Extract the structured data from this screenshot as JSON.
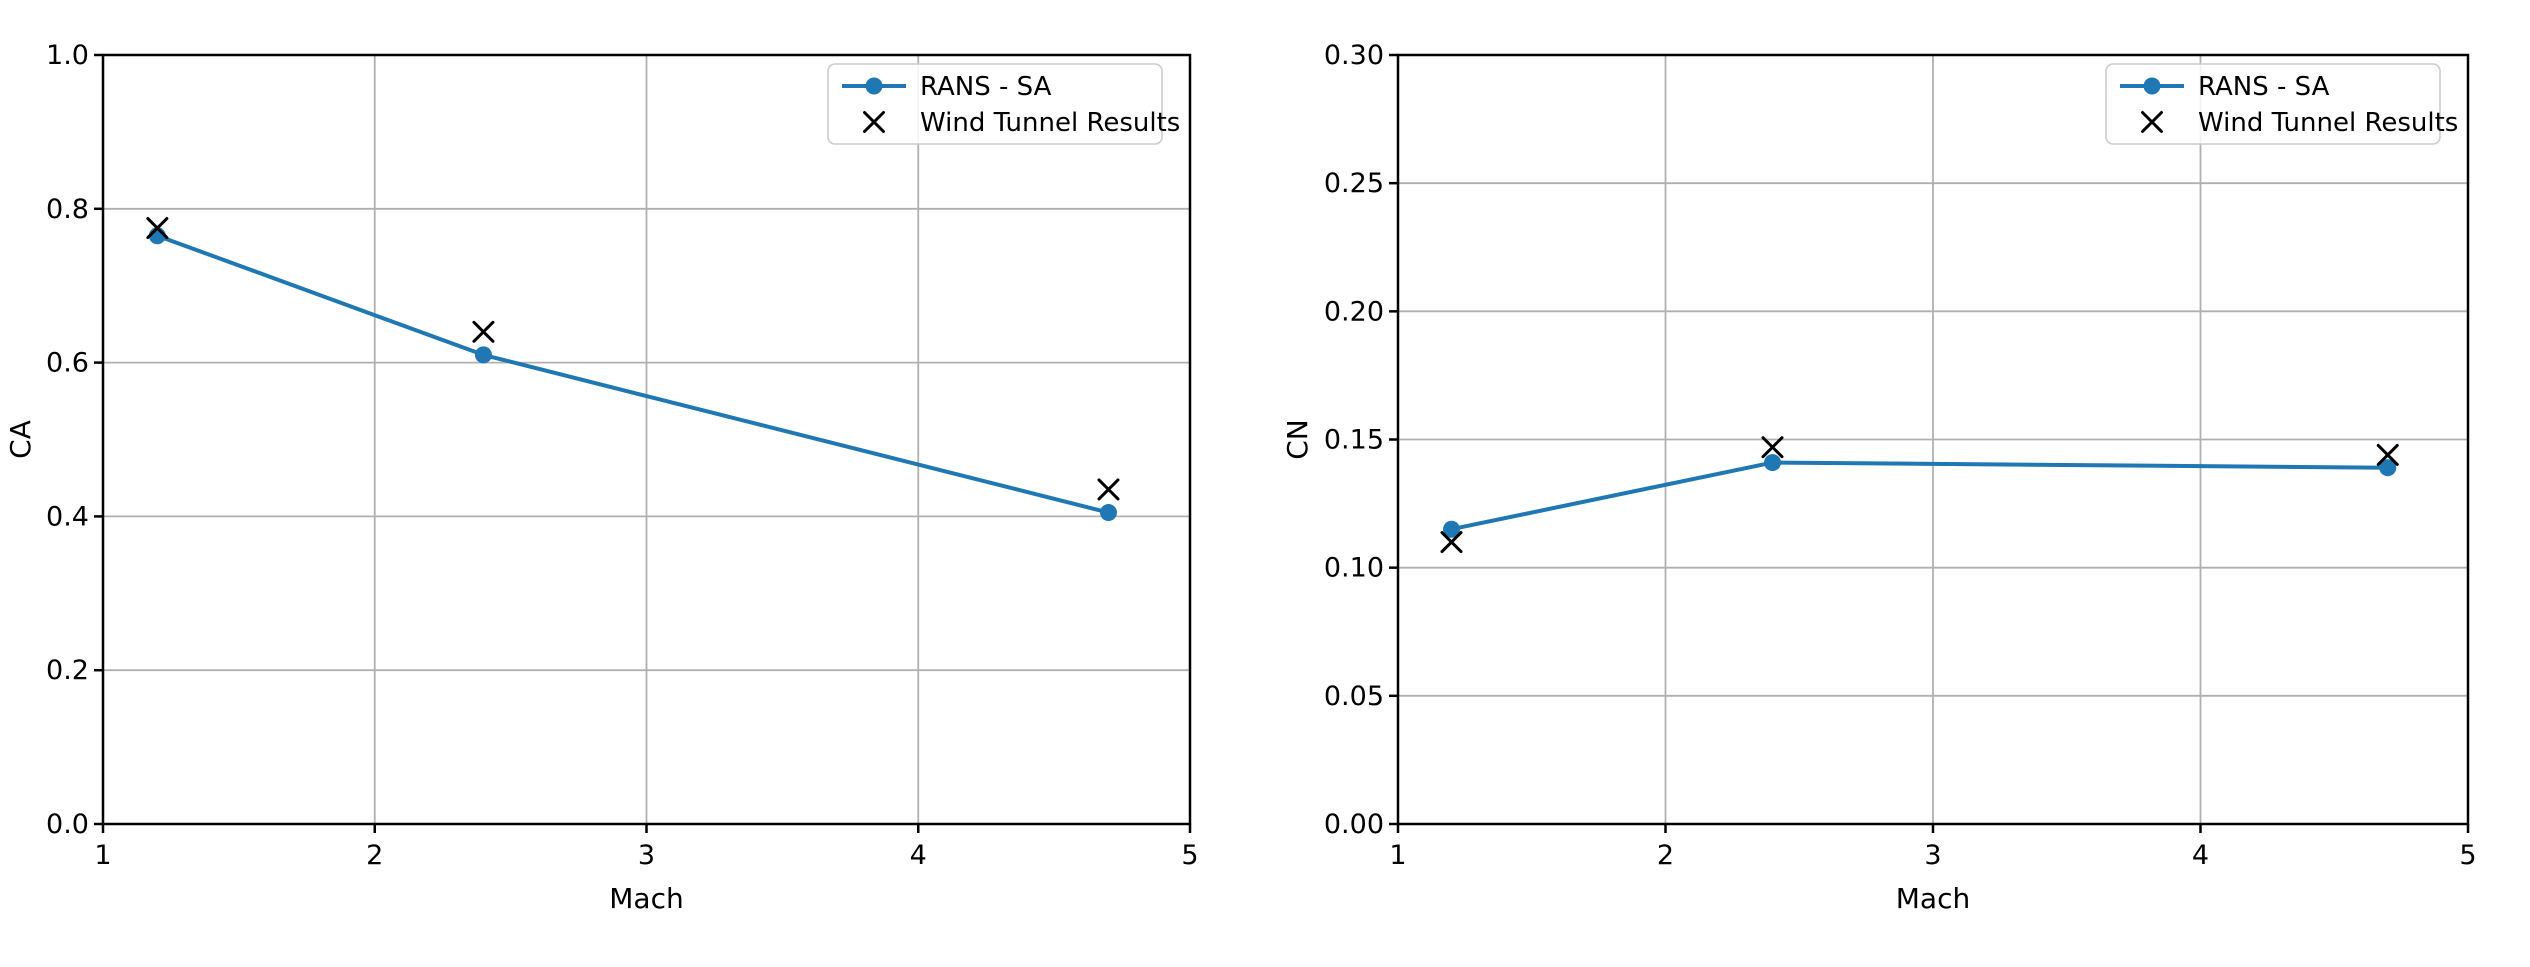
{
  "figure": {
    "background": "#ffffff",
    "text_color": "#000000",
    "grid_color": "#b0b0b0",
    "spine_color": "#000000",
    "legend_border_color": "#cccccc",
    "legend_bg_color": "#ffffff"
  },
  "chart_data": [
    {
      "type": "line",
      "title": "",
      "xlabel": "Mach",
      "ylabel": "CA",
      "xlim": [
        1,
        5
      ],
      "ylim": [
        0.0,
        1.0
      ],
      "xticks": [
        1,
        2,
        3,
        4,
        5
      ],
      "xtick_labels": [
        "1",
        "2",
        "3",
        "4",
        "5"
      ],
      "yticks": [
        0.0,
        0.2,
        0.4,
        0.6,
        0.8,
        1.0
      ],
      "ytick_labels": [
        "0.0",
        "0.2",
        "0.4",
        "0.6",
        "0.8",
        "1.0"
      ],
      "grid": true,
      "legend_position": "upper right",
      "series": [
        {
          "name": "RANS - SA",
          "marker": "circle",
          "line": true,
          "color": "#1f77b4",
          "x": [
            1.2,
            2.4,
            4.7
          ],
          "y": [
            0.765,
            0.61,
            0.405
          ]
        },
        {
          "name": "Wind Tunnel Results",
          "marker": "x",
          "line": false,
          "color": "#000000",
          "x": [
            1.2,
            2.4,
            4.7
          ],
          "y": [
            0.775,
            0.64,
            0.435
          ]
        }
      ]
    },
    {
      "type": "line",
      "title": "",
      "xlabel": "Mach",
      "ylabel": "CN",
      "xlim": [
        1,
        5
      ],
      "ylim": [
        0.0,
        0.3
      ],
      "xticks": [
        1,
        2,
        3,
        4,
        5
      ],
      "xtick_labels": [
        "1",
        "2",
        "3",
        "4",
        "5"
      ],
      "yticks": [
        0.0,
        0.05,
        0.1,
        0.15,
        0.2,
        0.25,
        0.3
      ],
      "ytick_labels": [
        "0.00",
        "0.05",
        "0.10",
        "0.15",
        "0.20",
        "0.25",
        "0.30"
      ],
      "grid": true,
      "legend_position": "upper right",
      "series": [
        {
          "name": "RANS - SA",
          "marker": "circle",
          "line": true,
          "color": "#1f77b4",
          "x": [
            1.2,
            2.4,
            4.7
          ],
          "y": [
            0.115,
            0.141,
            0.139
          ]
        },
        {
          "name": "Wind Tunnel Results",
          "marker": "x",
          "line": false,
          "color": "#000000",
          "x": [
            1.2,
            2.4,
            4.7
          ],
          "y": [
            0.11,
            0.147,
            0.144
          ]
        }
      ]
    }
  ]
}
